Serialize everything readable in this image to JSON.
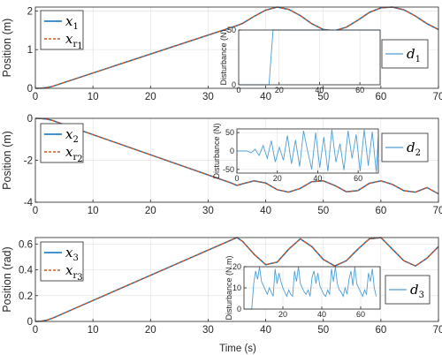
{
  "figure": {
    "xlabel": "Time (s)",
    "colors": {
      "actual": "#0072BD",
      "reference": "#D95319",
      "disturbance": "#4D9FD6"
    }
  },
  "chart_data": [
    {
      "type": "line",
      "ylabel": "Position (m)",
      "xlim": [
        0,
        70
      ],
      "ylim": [
        0,
        2.1
      ],
      "xticks": [
        "0",
        "10",
        "20",
        "30",
        "40",
        "50",
        "60",
        "70"
      ],
      "yticks": [
        "0",
        "1",
        "2"
      ],
      "grid": true,
      "legend_position": "top-left",
      "series": [
        {
          "name": "x1",
          "style": "solid",
          "x": [
            0,
            1,
            2,
            3,
            4,
            5,
            35,
            36,
            38,
            40,
            42,
            44,
            46,
            48,
            50,
            52,
            54,
            56,
            58,
            60,
            62,
            64,
            66,
            68,
            70
          ],
          "y": [
            0,
            0.003,
            0.02,
            0.05,
            0.1,
            0.15,
            1.62,
            1.68,
            1.86,
            2.02,
            2.1,
            2.04,
            1.88,
            1.67,
            1.52,
            1.49,
            1.58,
            1.76,
            1.96,
            2.08,
            2.1,
            2.03,
            1.87,
            1.67,
            1.52
          ]
        },
        {
          "name": "x_r1",
          "style": "dashed",
          "x": [
            0,
            1,
            2,
            3,
            4,
            5,
            35,
            36,
            38,
            40,
            42,
            44,
            46,
            48,
            50,
            52,
            54,
            56,
            58,
            60,
            62,
            64,
            66,
            68,
            70
          ],
          "y": [
            0,
            0.003,
            0.02,
            0.05,
            0.1,
            0.15,
            1.62,
            1.68,
            1.86,
            2.02,
            2.1,
            2.04,
            1.88,
            1.67,
            1.52,
            1.49,
            1.58,
            1.76,
            1.96,
            2.08,
            2.1,
            2.03,
            1.87,
            1.67,
            1.52
          ]
        }
      ],
      "inset": {
        "type": "line",
        "ylabel": "Disturbance (N)",
        "xlim": [
          0,
          70
        ],
        "ylim": [
          0,
          50
        ],
        "xticks": [
          "0",
          "20",
          "40",
          "60"
        ],
        "yticks": [
          "0",
          "50"
        ],
        "legend": "d1",
        "series": [
          {
            "name": "d1",
            "x": [
              0,
              15,
              17,
              70
            ],
            "y": [
              0,
              0,
              50,
              50
            ]
          }
        ]
      }
    },
    {
      "type": "line",
      "ylabel": "Position (m)",
      "xlim": [
        0,
        70
      ],
      "ylim": [
        -4,
        0
      ],
      "xticks": [
        "0",
        "10",
        "20",
        "30",
        "40",
        "50",
        "60",
        "70"
      ],
      "yticks": [
        "-4",
        "-2",
        "0"
      ],
      "grid": true,
      "legend_position": "top-left",
      "series": [
        {
          "name": "x2",
          "style": "solid",
          "x": [
            0,
            1,
            2,
            3,
            4,
            5,
            34,
            35,
            36,
            38,
            40,
            42,
            44,
            46,
            48,
            50,
            52,
            54,
            56,
            58,
            60,
            62,
            64,
            66,
            68,
            70
          ],
          "y": [
            0,
            -0.01,
            -0.04,
            -0.1,
            -0.2,
            -0.3,
            -3.08,
            -3.2,
            -3.12,
            -2.98,
            -3.08,
            -3.4,
            -3.52,
            -3.34,
            -3.02,
            -2.98,
            -3.2,
            -3.5,
            -3.45,
            -3.1,
            -2.98,
            -3.15,
            -3.45,
            -3.52,
            -3.3,
            -3.6
          ]
        },
        {
          "name": "x_r2",
          "style": "dashed",
          "x": [
            0,
            1,
            2,
            3,
            4,
            5,
            34,
            35,
            36,
            38,
            40,
            42,
            44,
            46,
            48,
            50,
            52,
            54,
            56,
            58,
            60,
            62,
            64,
            66,
            68,
            70
          ],
          "y": [
            0,
            -0.01,
            -0.04,
            -0.1,
            -0.2,
            -0.3,
            -3.08,
            -3.2,
            -3.12,
            -2.98,
            -3.08,
            -3.4,
            -3.52,
            -3.34,
            -3.02,
            -2.98,
            -3.2,
            -3.5,
            -3.45,
            -3.1,
            -2.98,
            -3.15,
            -3.45,
            -3.52,
            -3.3,
            -3.6
          ]
        }
      ],
      "inset": {
        "type": "line",
        "ylabel": "Disturbance (N)",
        "xlim": [
          0,
          70
        ],
        "ylim": [
          -60,
          60
        ],
        "xticks": [
          "0",
          "20",
          "40",
          "60"
        ],
        "yticks": [
          "-50",
          "0",
          "50"
        ],
        "legend": "d2",
        "series": [
          {
            "name": "d2",
            "x": [
              0,
              5,
              7,
              9,
              11,
              13,
              15,
              17,
              19,
              21,
              23,
              25,
              27,
              29,
              31,
              33,
              35,
              37,
              39,
              41,
              43,
              45,
              47,
              49,
              51,
              53,
              55,
              57,
              59,
              61,
              63,
              65,
              67,
              69,
              70
            ],
            "y": [
              0,
              0,
              -5,
              5,
              -12,
              15,
              -20,
              28,
              -30,
              10,
              -25,
              42,
              -35,
              30,
              -42,
              55,
              0,
              -50,
              50,
              -45,
              38,
              -55,
              58,
              -30,
              20,
              -52,
              55,
              -20,
              45,
              -55,
              58,
              -40,
              52,
              -58,
              40
            ]
          }
        ]
      }
    },
    {
      "type": "line",
      "ylabel": "Position (rad)",
      "xlim": [
        0,
        70
      ],
      "ylim": [
        0,
        0.65
      ],
      "xticks": [
        "0",
        "10",
        "20",
        "30",
        "40",
        "50",
        "60",
        "70"
      ],
      "yticks": [
        "0",
        "0.2",
        "0.4",
        "0.6"
      ],
      "grid": true,
      "legend_position": "top-left",
      "series": [
        {
          "name": "x3",
          "style": "solid",
          "x": [
            0,
            1,
            2,
            3,
            4,
            5,
            35,
            36,
            38,
            40,
            42,
            44,
            46,
            48,
            50,
            52,
            54,
            56,
            58,
            60,
            62,
            64,
            66,
            68,
            70
          ],
          "y": [
            0,
            0.002,
            0.01,
            0.025,
            0.045,
            0.065,
            0.65,
            0.62,
            0.52,
            0.44,
            0.46,
            0.56,
            0.64,
            0.58,
            0.48,
            0.43,
            0.47,
            0.56,
            0.64,
            0.65,
            0.56,
            0.47,
            0.43,
            0.49,
            0.58
          ]
        },
        {
          "name": "x_r3",
          "style": "dashed",
          "x": [
            0,
            1,
            2,
            3,
            4,
            5,
            35,
            36,
            38,
            40,
            42,
            44,
            46,
            48,
            50,
            52,
            54,
            56,
            58,
            60,
            62,
            64,
            66,
            68,
            70
          ],
          "y": [
            0,
            0.002,
            0.01,
            0.025,
            0.045,
            0.065,
            0.65,
            0.62,
            0.52,
            0.44,
            0.46,
            0.56,
            0.64,
            0.58,
            0.48,
            0.43,
            0.47,
            0.56,
            0.64,
            0.65,
            0.56,
            0.47,
            0.43,
            0.49,
            0.58
          ]
        }
      ],
      "inset": {
        "type": "line",
        "ylabel": "Disturbance (N.m)",
        "xlim": [
          0,
          70
        ],
        "ylim": [
          0,
          20
        ],
        "xticks": [
          "20",
          "40",
          "60"
        ],
        "yticks": [
          "0",
          "10",
          "20"
        ],
        "legend": "d3",
        "series": [
          {
            "name": "d3",
            "x": [
              0,
              4,
              5,
              6,
              7,
              8,
              9,
              10,
              11,
              12,
              13,
              14,
              15,
              16,
              17,
              18,
              19,
              20,
              21,
              22,
              23,
              24,
              25,
              26,
              27,
              28,
              29,
              30,
              31,
              32,
              33,
              34,
              35,
              36,
              37,
              38,
              39,
              40,
              41,
              42,
              43,
              44,
              45,
              46,
              47,
              48,
              49,
              50,
              51,
              52,
              53,
              54,
              55,
              56,
              57,
              58,
              59,
              60,
              61,
              62,
              63,
              64,
              65,
              66,
              67,
              68
            ],
            "y": [
              0,
              0,
              12,
              18,
              14,
              20,
              13,
              11,
              9,
              7,
              10,
              8,
              6,
              19,
              12,
              17,
              13,
              10,
              8,
              6,
              9,
              7,
              6,
              18,
              13,
              20,
              12,
              10,
              8,
              7,
              9,
              6,
              15,
              18,
              12,
              17,
              11,
              9,
              7,
              6,
              9,
              7,
              19,
              13,
              20,
              12,
              9,
              8,
              6,
              10,
              7,
              14,
              18,
              11,
              20,
              12,
              10,
              8,
              6,
              9,
              7,
              17,
              13,
              19,
              10,
              6
            ]
          }
        ]
      }
    }
  ]
}
